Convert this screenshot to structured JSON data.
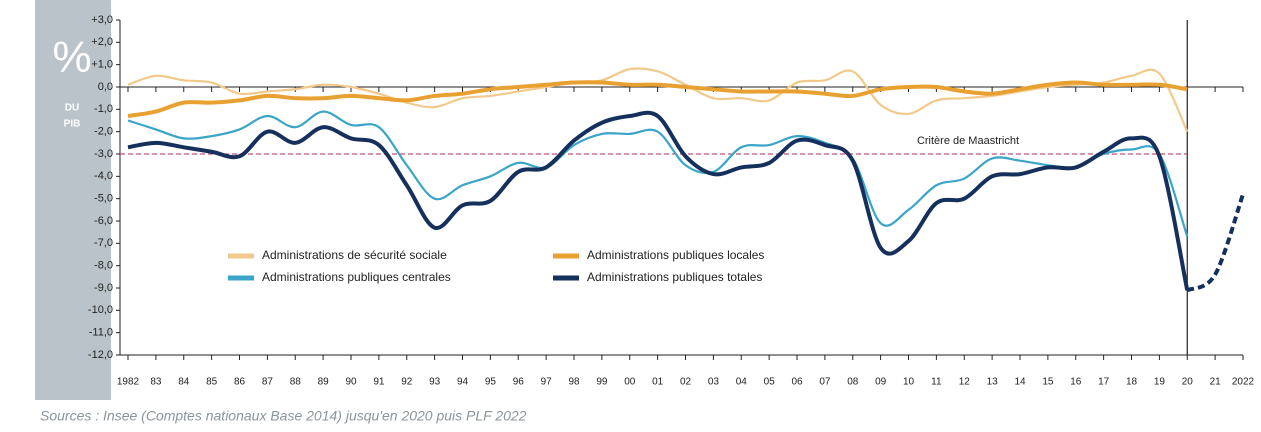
{
  "chart_data": {
    "type": "line",
    "unit_panel": {
      "unit": "%",
      "lines": [
        "DU",
        "PIB"
      ]
    },
    "source": "Sources : Insee (Comptes nationaux Base 2014) jusqu'en 2020 puis PLF 2022",
    "x": [
      1982,
      1983,
      1984,
      1985,
      1986,
      1987,
      1988,
      1989,
      1990,
      1991,
      1992,
      1993,
      1994,
      1995,
      1996,
      1997,
      1998,
      1999,
      2000,
      2001,
      2002,
      2003,
      2004,
      2005,
      2006,
      2007,
      2008,
      2009,
      2010,
      2011,
      2012,
      2013,
      2014,
      2015,
      2016,
      2017,
      2018,
      2019,
      2020,
      2021,
      2022
    ],
    "xlim": [
      1982,
      2022
    ],
    "xticks": [
      {
        "value": 1982,
        "label": "1982"
      },
      {
        "value": 1983,
        "label": "83"
      },
      {
        "value": 1984,
        "label": "84"
      },
      {
        "value": 1985,
        "label": "85"
      },
      {
        "value": 1986,
        "label": "86"
      },
      {
        "value": 1987,
        "label": "87"
      },
      {
        "value": 1988,
        "label": "88"
      },
      {
        "value": 1989,
        "label": "89"
      },
      {
        "value": 1990,
        "label": "90"
      },
      {
        "value": 1991,
        "label": "91"
      },
      {
        "value": 1992,
        "label": "92"
      },
      {
        "value": 1993,
        "label": "93"
      },
      {
        "value": 1994,
        "label": "94"
      },
      {
        "value": 1995,
        "label": "95"
      },
      {
        "value": 1996,
        "label": "96"
      },
      {
        "value": 1997,
        "label": "97"
      },
      {
        "value": 1998,
        "label": "98"
      },
      {
        "value": 1999,
        "label": "99"
      },
      {
        "value": 2000,
        "label": "00"
      },
      {
        "value": 2001,
        "label": "01"
      },
      {
        "value": 2002,
        "label": "02"
      },
      {
        "value": 2003,
        "label": "03"
      },
      {
        "value": 2004,
        "label": "04"
      },
      {
        "value": 2005,
        "label": "05"
      },
      {
        "value": 2006,
        "label": "06"
      },
      {
        "value": 2007,
        "label": "07"
      },
      {
        "value": 2008,
        "label": "08"
      },
      {
        "value": 2009,
        "label": "09"
      },
      {
        "value": 2010,
        "label": "10"
      },
      {
        "value": 2011,
        "label": "11"
      },
      {
        "value": 2012,
        "label": "12"
      },
      {
        "value": 2013,
        "label": "13"
      },
      {
        "value": 2014,
        "label": "14"
      },
      {
        "value": 2015,
        "label": "15"
      },
      {
        "value": 2016,
        "label": "16"
      },
      {
        "value": 2017,
        "label": "17"
      },
      {
        "value": 2018,
        "label": "18"
      },
      {
        "value": 2019,
        "label": "19"
      },
      {
        "value": 2020,
        "label": "20"
      },
      {
        "value": 2021,
        "label": "21"
      },
      {
        "value": 2022,
        "label": "2022"
      }
    ],
    "ylim": [
      -12,
      3
    ],
    "yticks": [
      {
        "value": 3,
        "label": "+3,0"
      },
      {
        "value": 2,
        "label": "+2,0"
      },
      {
        "value": 1,
        "label": "+1,0"
      },
      {
        "value": 0,
        "label": "0,0"
      },
      {
        "value": -1,
        "label": "-1,0"
      },
      {
        "value": -2,
        "label": "-2,0"
      },
      {
        "value": -3,
        "label": "-3,0"
      },
      {
        "value": -4,
        "label": "-4,0"
      },
      {
        "value": -5,
        "label": "-5,0"
      },
      {
        "value": -6,
        "label": "-6,0"
      },
      {
        "value": -7,
        "label": "-7,0"
      },
      {
        "value": -8,
        "label": "-8,0"
      },
      {
        "value": -9,
        "label": "-9,0"
      },
      {
        "value": -10,
        "label": "-10,0"
      },
      {
        "value": -11,
        "label": "-11,0"
      },
      {
        "value": -12,
        "label": "-12,0"
      }
    ],
    "forecast_from": 2020,
    "reference_line": {
      "value": -3,
      "label": "Critère de Maastricht",
      "color": "#c0507a"
    },
    "series": [
      {
        "name": "Administrations de sécurité sociale",
        "color": "#f2c98a",
        "values": [
          0.1,
          0.5,
          0.3,
          0.2,
          -0.3,
          -0.2,
          -0.1,
          0.1,
          0.0,
          -0.3,
          -0.7,
          -0.9,
          -0.5,
          -0.4,
          -0.2,
          0.0,
          0.2,
          0.3,
          0.8,
          0.7,
          0.1,
          -0.5,
          -0.5,
          -0.6,
          0.2,
          0.3,
          0.7,
          -0.8,
          -1.2,
          -0.6,
          -0.5,
          -0.4,
          -0.2,
          0.0,
          0.1,
          0.2,
          0.5,
          0.6,
          -2.0,
          null,
          null
        ]
      },
      {
        "name": "Administrations publiques locales",
        "color": "#e8a030",
        "values": [
          -1.3,
          -1.1,
          -0.7,
          -0.7,
          -0.6,
          -0.4,
          -0.5,
          -0.5,
          -0.4,
          -0.5,
          -0.6,
          -0.4,
          -0.3,
          -0.1,
          0.0,
          0.1,
          0.2,
          0.2,
          0.1,
          0.1,
          0.0,
          -0.1,
          -0.2,
          -0.2,
          -0.2,
          -0.3,
          -0.4,
          -0.1,
          0.0,
          0.0,
          -0.2,
          -0.3,
          -0.1,
          0.1,
          0.2,
          0.1,
          0.1,
          0.1,
          -0.1,
          null,
          null
        ]
      },
      {
        "name": "Administrations publiques centrales",
        "color": "#3aa5c8",
        "values": [
          -1.5,
          -1.9,
          -2.3,
          -2.2,
          -1.9,
          -1.3,
          -1.8,
          -1.1,
          -1.7,
          -1.8,
          -3.5,
          -5.0,
          -4.4,
          -4.0,
          -3.4,
          -3.6,
          -2.6,
          -2.1,
          -2.1,
          -2.0,
          -3.5,
          -3.8,
          -2.7,
          -2.6,
          -2.2,
          -2.5,
          -3.2,
          -6.1,
          -5.5,
          -4.4,
          -4.1,
          -3.2,
          -3.3,
          -3.5,
          -3.6,
          -3.0,
          -2.8,
          -3.0,
          -6.7,
          null,
          null
        ]
      },
      {
        "name": "Administrations publiques totales",
        "color": "#15305c",
        "values": [
          -2.7,
          -2.5,
          -2.7,
          -2.9,
          -3.1,
          -2.0,
          -2.5,
          -1.8,
          -2.3,
          -2.6,
          -4.4,
          -6.3,
          -5.3,
          -5.1,
          -3.8,
          -3.6,
          -2.4,
          -1.6,
          -1.3,
          -1.3,
          -3.1,
          -3.9,
          -3.6,
          -3.4,
          -2.4,
          -2.6,
          -3.3,
          -7.2,
          -6.9,
          -5.2,
          -5.0,
          -4.0,
          -3.9,
          -3.6,
          -3.6,
          -2.9,
          -2.3,
          -3.1,
          -9.1,
          -8.4,
          -4.8
        ]
      }
    ]
  }
}
